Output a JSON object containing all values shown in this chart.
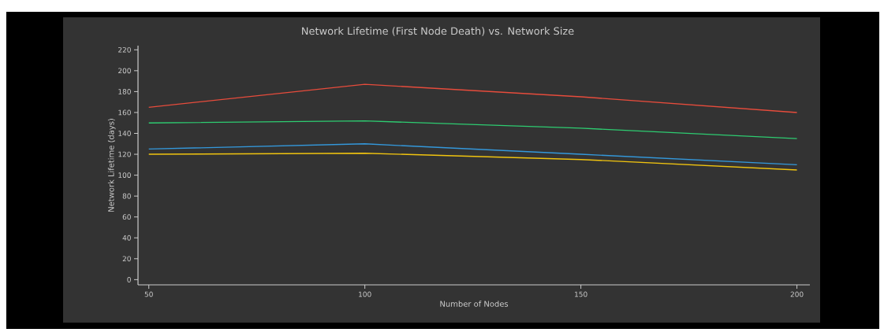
{
  "chart_data": {
    "type": "line",
    "title": "Network Lifetime (First Node Death) vs. Network Size",
    "xlabel": "Number of Nodes",
    "ylabel": "Network Lifetime (days)",
    "x": [
      50,
      100,
      150,
      200
    ],
    "series": [
      {
        "color": "#e74c3c",
        "values": [
          165,
          187,
          175,
          160
        ]
      },
      {
        "color": "#2ecc71",
        "values": [
          150,
          152,
          145,
          135
        ]
      },
      {
        "color": "#3498db",
        "values": [
          125,
          130,
          120,
          110
        ]
      },
      {
        "color": "#f1c40f",
        "values": [
          120,
          121,
          115,
          105
        ]
      }
    ],
    "xlim": [
      47.5,
      203
    ],
    "ylim": [
      -5,
      224
    ],
    "xticks": [
      50,
      100,
      150,
      200
    ],
    "yticks": [
      0,
      20,
      40,
      60,
      80,
      100,
      120,
      140,
      160,
      180,
      200,
      220
    ]
  }
}
